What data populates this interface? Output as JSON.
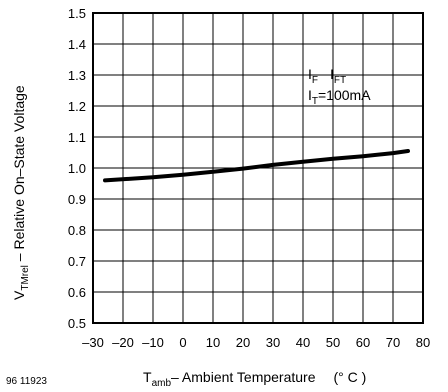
{
  "chart_data": {
    "type": "line",
    "figure_ref": "96 11923",
    "xlabel": {
      "main": "T",
      "sub": "amb",
      "rest": "– Ambient Temperature",
      "unit": "(° C )"
    },
    "ylabel": {
      "main": "V",
      "sub": "TMrel",
      "rest": " – Relative On–State  Voltage"
    },
    "xlim": [
      -30,
      80
    ],
    "ylim": [
      0.5,
      1.5
    ],
    "x_ticks": [
      -30,
      -20,
      -10,
      0,
      10,
      20,
      30,
      40,
      50,
      60,
      70,
      80
    ],
    "x_tick_labels": [
      "–30",
      "–20",
      "–10",
      "0",
      "10",
      "20",
      "30",
      "40",
      "50",
      "60",
      "70",
      "80"
    ],
    "y_ticks": [
      0.5,
      0.6,
      0.7,
      0.8,
      0.9,
      1.0,
      1.1,
      1.2,
      1.3,
      1.4,
      1.5
    ],
    "y_tick_labels": [
      "0.5",
      "0.6",
      "0.7",
      "0.8",
      "0.9",
      "1.0",
      "1.1",
      "1.2",
      "1.3",
      "1.4",
      "1.5"
    ],
    "grid": true,
    "annotations": {
      "line1": [
        {
          "main": "I",
          "sub": "F"
        },
        {
          "main": "I",
          "sub": "FT"
        }
      ],
      "line2": {
        "main": "I",
        "sub": "T",
        "rest": "=100mA"
      }
    },
    "series": [
      {
        "x": [
          -26,
          -10,
          0,
          10,
          20,
          30,
          40,
          50,
          60,
          70,
          75
        ],
        "y": [
          0.96,
          0.97,
          0.978,
          0.988,
          0.998,
          1.01,
          1.02,
          1.03,
          1.038,
          1.048,
          1.055
        ]
      }
    ]
  }
}
